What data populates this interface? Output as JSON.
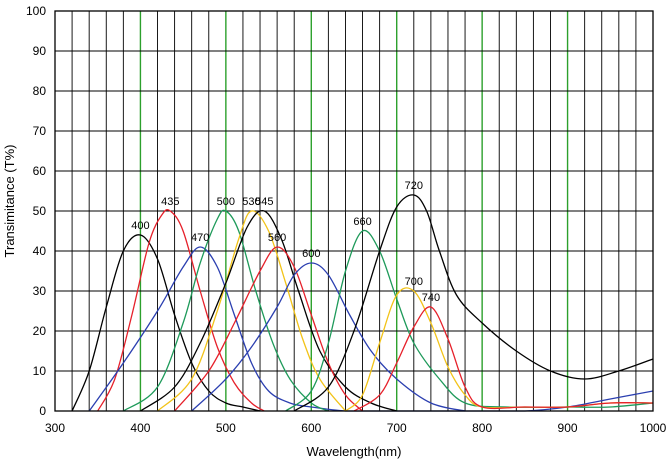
{
  "chart_data": {
    "type": "line",
    "title": "",
    "xlabel": "Wavelength(nm)",
    "ylabel": "Transimitance (T%)",
    "xlim": [
      300,
      1000
    ],
    "ylim": [
      0,
      100
    ],
    "x_ticks": [
      300,
      400,
      500,
      600,
      700,
      800,
      900,
      1000
    ],
    "y_ticks": [
      0,
      10,
      20,
      30,
      40,
      50,
      60,
      70,
      80,
      90,
      100
    ],
    "grid": true,
    "minor_x_grid_step": 20,
    "highlight_gridlines": {
      "x": [
        400,
        500,
        600,
        700,
        800,
        900
      ],
      "color": "#2ca02c"
    },
    "grid_color": "#000000",
    "legend": "none",
    "series": [
      {
        "label": "400",
        "color": "#000000",
        "x": [
          320,
          340,
          360,
          380,
          400,
          420,
          440,
          460,
          480,
          500,
          520,
          540
        ],
        "y": [
          0,
          10,
          26,
          40,
          44,
          38,
          24,
          12,
          5,
          2,
          1,
          0
        ]
      },
      {
        "label": "435",
        "color": "#e6202a",
        "x": [
          350,
          370,
          390,
          410,
          425,
          435,
          450,
          470,
          490,
          510,
          530,
          545
        ],
        "y": [
          0,
          8,
          24,
          42,
          49,
          50,
          45,
          30,
          16,
          7,
          2,
          0
        ]
      },
      {
        "label": "470",
        "color": "#2b3fb0",
        "x": [
          340,
          380,
          420,
          450,
          470,
          490,
          510,
          530,
          550,
          575,
          600,
          640,
          680,
          720,
          760,
          800,
          850,
          900,
          950,
          1000
        ],
        "y": [
          0,
          12,
          25,
          36,
          41,
          36,
          24,
          12,
          5,
          2,
          1,
          0,
          0,
          0,
          0,
          0,
          0,
          1,
          3,
          5
        ]
      },
      {
        "label": "500",
        "color": "#1e9a5a",
        "x": [
          380,
          420,
          450,
          470,
          490,
          500,
          515,
          535,
          555,
          575,
          600,
          620
        ],
        "y": [
          0,
          6,
          22,
          37,
          48,
          50,
          45,
          30,
          17,
          8,
          2,
          0
        ]
      },
      {
        "label": "530",
        "color": "#f2c318",
        "x": [
          420,
          460,
          490,
          515,
          530,
          550,
          570,
          590,
          610,
          640
        ],
        "y": [
          0,
          8,
          25,
          43,
          50,
          45,
          32,
          18,
          8,
          0
        ]
      },
      {
        "label": "545",
        "color": "#000000",
        "x": [
          400,
          440,
          470,
          500,
          525,
          545,
          565,
          585,
          610,
          640,
          670,
          700
        ],
        "y": [
          0,
          6,
          17,
          32,
          46,
          50,
          43,
          30,
          15,
          6,
          2,
          0
        ]
      },
      {
        "label": "560",
        "color": "#e6202a",
        "x": [
          440,
          480,
          510,
          540,
          560,
          580,
          600,
          620,
          640,
          660
        ],
        "y": [
          0,
          10,
          22,
          35,
          41,
          36,
          24,
          12,
          4,
          0
        ]
      },
      {
        "label": "600",
        "color": "#2b3fb0",
        "x": [
          460,
          500,
          530,
          560,
          580,
          600,
          620,
          645,
          670,
          700,
          740,
          780
        ],
        "y": [
          0,
          8,
          16,
          26,
          34,
          37,
          34,
          24,
          15,
          8,
          2,
          0
        ]
      },
      {
        "label": "660",
        "color": "#1e9a5a",
        "x": [
          570,
          600,
          620,
          640,
          660,
          680,
          700,
          720,
          750,
          780,
          830,
          900,
          950,
          1000
        ],
        "y": [
          0,
          5,
          17,
          35,
          45,
          40,
          28,
          17,
          8,
          2,
          1,
          1,
          1,
          2
        ]
      },
      {
        "label": "700",
        "color": "#f2c318",
        "x": [
          640,
          660,
          680,
          700,
          720,
          740,
          760,
          780,
          800,
          850,
          900,
          950,
          1000
        ],
        "y": [
          0,
          4,
          17,
          29,
          30,
          22,
          11,
          4,
          1,
          1,
          1,
          2,
          2
        ]
      },
      {
        "label": "720",
        "color": "#000000",
        "x": [
          580,
          620,
          650,
          680,
          700,
          720,
          735,
          750,
          770,
          800,
          840,
          880,
          920,
          960,
          1000
        ],
        "y": [
          0,
          6,
          20,
          40,
          51,
          54,
          50,
          40,
          29,
          22,
          15,
          10,
          8,
          10,
          13
        ]
      },
      {
        "label": "740",
        "color": "#e6202a",
        "x": [
          650,
          680,
          700,
          720,
          740,
          760,
          780,
          800,
          850,
          900,
          950,
          1000
        ],
        "y": [
          0,
          4,
          12,
          21,
          26,
          18,
          6,
          1,
          1,
          1,
          2,
          2
        ]
      }
    ]
  }
}
